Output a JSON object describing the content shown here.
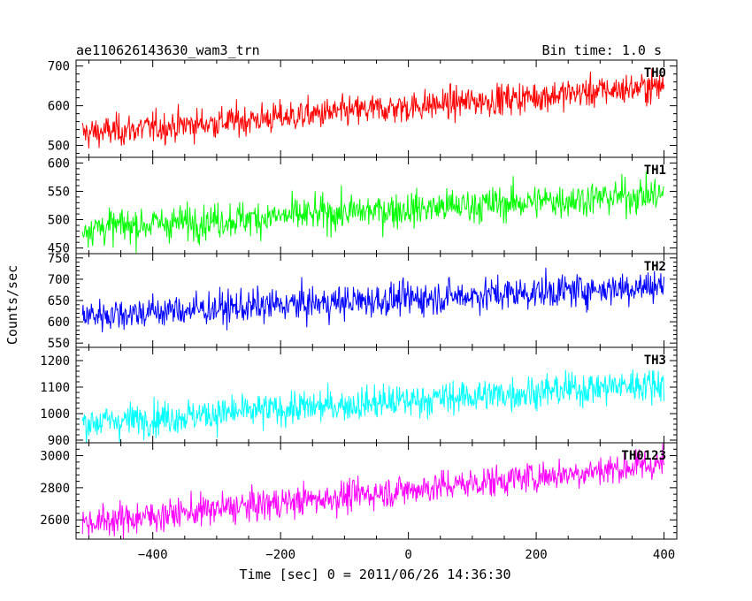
{
  "chart_data": {
    "type": "line",
    "title": "ae110626143630_wam3_trn",
    "subtitle": "Bin time: 1.0 s",
    "xlabel": "Time [sec] 0 = 2011/06/26 14:36:30",
    "ylabel": "Counts/sec",
    "xlim": [
      -520,
      420
    ],
    "x_ticks": [
      -400,
      -200,
      0,
      200,
      400
    ],
    "x_tick_labels": [
      "−400",
      "−200",
      "0",
      "200",
      "400"
    ],
    "x_range": [
      -510,
      400
    ],
    "grid": false,
    "panels": [
      {
        "name": "TH0",
        "color": "#ff0000",
        "ylim": [
          470,
          715
        ],
        "yticks": [
          500,
          600,
          700
        ],
        "ytick_labels": [
          "500",
          "600",
          "700"
        ],
        "trend": [
          [
            -510,
            530
          ],
          [
            400,
            650
          ]
        ],
        "noise": 28
      },
      {
        "name": "TH1",
        "color": "#00ff00",
        "ylim": [
          440,
          610
        ],
        "yticks": [
          450,
          500,
          550,
          600
        ],
        "ytick_labels": [
          "450",
          "500",
          "550",
          "600"
        ],
        "trend": [
          [
            -510,
            485
          ],
          [
            400,
            545
          ]
        ],
        "noise": 22
      },
      {
        "name": "TH2",
        "color": "#0000ff",
        "ylim": [
          540,
          760
        ],
        "yticks": [
          550,
          600,
          650,
          700,
          750
        ],
        "ytick_labels": [
          "550",
          "600",
          "650",
          "700",
          "750"
        ],
        "trend": [
          [
            -510,
            615
          ],
          [
            400,
            685
          ]
        ],
        "noise": 28
      },
      {
        "name": "TH3",
        "color": "#00ffff",
        "ylim": [
          890,
          1250
        ],
        "yticks": [
          900,
          1000,
          1100,
          1200
        ],
        "ytick_labels": [
          "900",
          "1000",
          "1100",
          "1200"
        ],
        "trend": [
          [
            -510,
            965
          ],
          [
            400,
            1115
          ]
        ],
        "noise": 45
      },
      {
        "name": "TH0123",
        "color": "#ff00ff",
        "ylim": [
          2480,
          3080
        ],
        "yticks": [
          2600,
          2800,
          3000
        ],
        "ytick_labels": [
          "2600",
          "2800",
          "3000"
        ],
        "trend": [
          [
            -510,
            2580
          ],
          [
            400,
            2950
          ]
        ],
        "noise": 70
      }
    ]
  }
}
